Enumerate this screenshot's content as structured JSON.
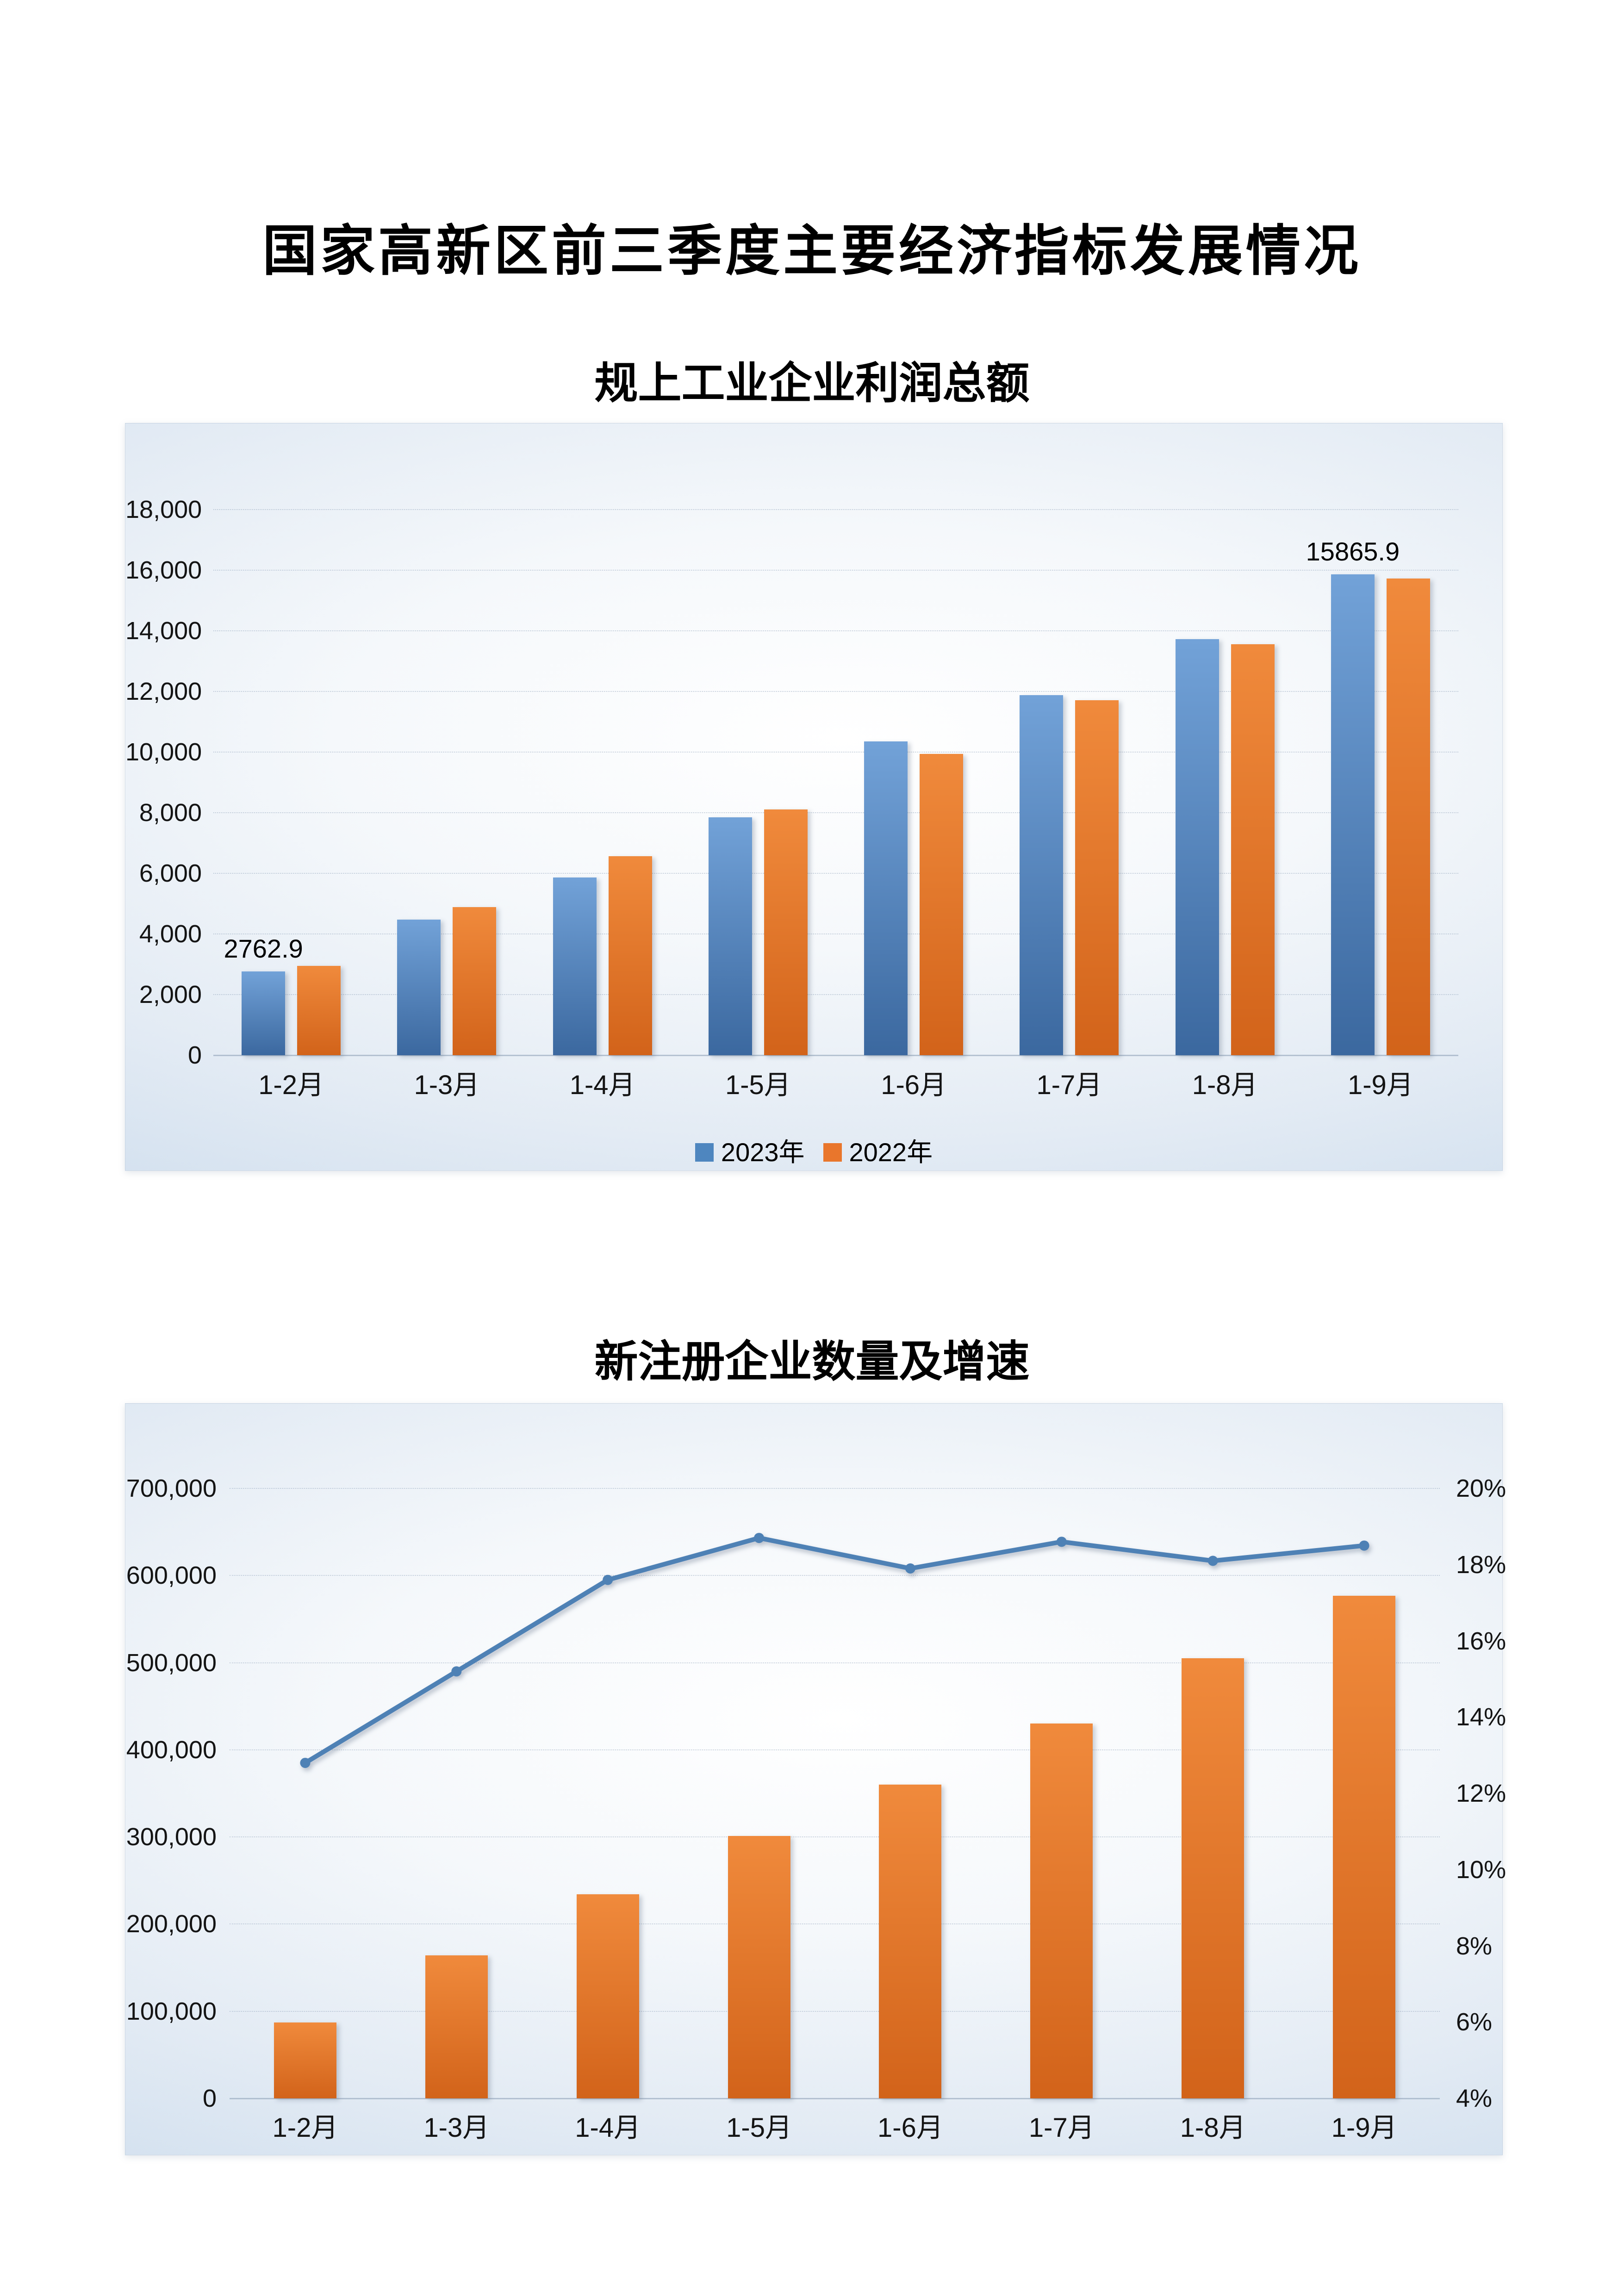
{
  "page": {
    "title": "国家高新区前三季度主要经济指标发展情况",
    "background": "#ffffff"
  },
  "chart_data": [
    {
      "type": "bar",
      "title": "规上工业企业利润总额",
      "categories": [
        "1-2月",
        "1-3月",
        "1-4月",
        "1-5月",
        "1-6月",
        "1-7月",
        "1-8月",
        "1-9月"
      ],
      "series": [
        {
          "name": "2023年",
          "color": "#4e86bf",
          "color_top": "#72a2d8",
          "color_bottom": "#3b689f",
          "values": [
            2762.9,
            4480,
            5860,
            7850,
            10350,
            11880,
            13730,
            15865.9
          ],
          "point_labels": [
            "2762.9",
            null,
            null,
            null,
            null,
            null,
            null,
            "15865.9"
          ]
        },
        {
          "name": "2022年",
          "color": "#e9762c",
          "color_top": "#f08a3c",
          "color_bottom": "#d2631a",
          "values": [
            2950,
            4880,
            6570,
            8110,
            9940,
            11710,
            13550,
            15720
          ]
        }
      ],
      "ylim": [
        0,
        18000
      ],
      "ytick_labels": [
        "0",
        "2,000",
        "4,000",
        "6,000",
        "8,000",
        "10,000",
        "12,000",
        "14,000",
        "16,000",
        "18,000"
      ],
      "grid": true,
      "legend_position": "bottom"
    },
    {
      "type": "combo-bar-line",
      "title": "新注册企业数量及增速",
      "categories": [
        "1-2月",
        "1-3月",
        "1-4月",
        "1-5月",
        "1-6月",
        "1-7月",
        "1-8月",
        "1-9月"
      ],
      "series": [
        {
          "id": "bar-series",
          "type": "bar",
          "axis": "left",
          "color": "#e9762c",
          "color_top": "#f08a3c",
          "color_bottom": "#d2631a",
          "values": [
            87000,
            164000,
            234000,
            301000,
            360000,
            430000,
            505000,
            577000
          ]
        },
        {
          "id": "line-series",
          "type": "line",
          "axis": "right",
          "color": "#4e81b5",
          "values_percent": [
            12.8,
            15.2,
            17.6,
            18.7,
            17.9,
            18.6,
            18.1,
            18.5
          ]
        }
      ],
      "left_ylim": [
        0,
        700000
      ],
      "left_tick_labels": [
        "0",
        "100,000",
        "200,000",
        "300,000",
        "400,000",
        "500,000",
        "600,000",
        "700,000"
      ],
      "right_ylim": [
        4,
        20
      ],
      "right_tick_labels": [
        "4%",
        "6%",
        "8%",
        "10%",
        "12%",
        "14%",
        "16%",
        "18%",
        "20%"
      ],
      "grid": true,
      "legend_position": "none"
    }
  ]
}
